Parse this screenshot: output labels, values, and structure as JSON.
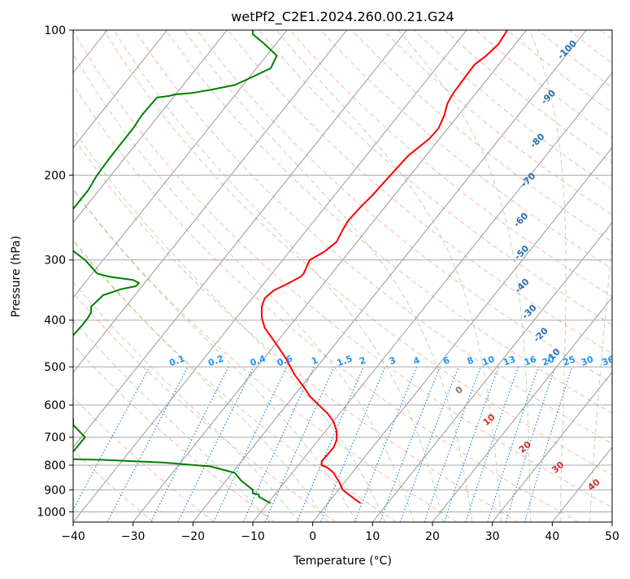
{
  "chart_data": {
    "type": "line",
    "title": "wetPf2_C2E1.2024.260.00.21.G24",
    "xlabel": "Temperature (°C)",
    "ylabel": "Pressure (hPa)",
    "xlim": [
      -40,
      50
    ],
    "ylim": [
      1050,
      100
    ],
    "y_scale": "log",
    "grid": true,
    "x_ticks": [
      -40,
      -30,
      -20,
      -10,
      0,
      10,
      20,
      30,
      40,
      50
    ],
    "y_ticks": [
      100,
      200,
      300,
      400,
      500,
      600,
      700,
      800,
      900,
      1000
    ],
    "isotherm_labels": [
      {
        "text": "-100",
        "x": -20.5,
        "p": 110
      },
      {
        "text": "-90",
        "x": -17.3,
        "p": 138
      },
      {
        "text": "-80",
        "x": -13.3,
        "p": 170
      },
      {
        "text": "-70",
        "x": -9.6,
        "p": 205
      },
      {
        "text": "-60",
        "x": -5.5,
        "p": 248
      },
      {
        "text": "-50",
        "x": -1.0,
        "p": 290
      },
      {
        "text": "-40",
        "x": 3.5,
        "p": 340
      },
      {
        "text": "-30",
        "x": 8.2,
        "p": 385
      },
      {
        "text": "-20",
        "x": 13.2,
        "p": 430
      },
      {
        "text": "-10",
        "x": 18.0,
        "p": 475
      }
    ],
    "mixing_ratio_labels": [
      "0.1",
      "0.2",
      "0.4",
      "0.6",
      "1",
      "1.5",
      "2",
      "3",
      "4",
      "6",
      "8",
      "10",
      "13",
      "16",
      "20",
      "25",
      "30",
      "36"
    ],
    "mixing_ratio_positions": [
      -22.5,
      -16,
      -9,
      -4.5,
      0.5,
      5.5,
      8.5,
      13.5,
      17.5,
      22.5,
      26.5,
      29.5,
      33,
      36.5,
      39.5,
      43,
      46,
      49.5
    ],
    "theta_e_labels": [
      {
        "text": "0",
        "x": 24.5,
        "p": 560
      },
      {
        "text": "10",
        "x": 29.5,
        "p": 645
      },
      {
        "text": "20",
        "x": 35.5,
        "p": 735
      },
      {
        "text": "30",
        "x": 41.0,
        "p": 810
      },
      {
        "text": "40",
        "x": 47.0,
        "p": 880
      }
    ],
    "series": [
      {
        "color": "#ff0000",
        "x": [
          32.5,
          31,
          29,
          27,
          25.5,
          24.5,
          23.5,
          22.5,
          22,
          21.5,
          21,
          19.5,
          16,
          13,
          10,
          8,
          6,
          5,
          4,
          2,
          -0.5,
          -1.5,
          -2,
          -4,
          -6.5,
          -8,
          -8.5,
          -8.5,
          -8,
          -6,
          -4.5,
          -3,
          -1.5,
          -0.5,
          1,
          2.5,
          3.5,
          4,
          4,
          3.5,
          2.5,
          1.5,
          1.5,
          2.5,
          3.5,
          4,
          4.5,
          5,
          6.5,
          8
        ],
        "p": [
          100,
          107,
          113,
          118,
          125,
          130,
          135,
          142,
          150,
          155,
          160,
          168,
          182,
          200,
          220,
          233,
          248,
          260,
          275,
          288,
          300,
          320,
          325,
          335,
          347,
          360,
          375,
          395,
          415,
          450,
          480,
          520,
          550,
          575,
          600,
          625,
          650,
          680,
          710,
          735,
          760,
          785,
          800,
          810,
          830,
          850,
          870,
          900,
          930,
          960
        ]
      },
      {
        "color": "#008000",
        "x": [
          -10,
          -10,
          -8,
          -6,
          -7,
          -10,
          -13,
          -17,
          -20,
          -23,
          -24,
          -26,
          -28.5,
          -30,
          -32,
          -34,
          -36,
          -37.5,
          -40,
          -42,
          -38,
          -36,
          -34,
          -30,
          -29,
          -29.5,
          -32,
          -35,
          -36,
          -37,
          -37,
          -37.5,
          -38.5,
          -40,
          -45,
          -42,
          -40,
          -40,
          -38,
          -40,
          -44,
          -35,
          -25,
          -17,
          -13,
          -12,
          -11,
          -10,
          -10,
          -9,
          -9,
          -8,
          -7
        ],
        "p": [
          100,
          102,
          107,
          113,
          120,
          125,
          130,
          133,
          135,
          136,
          137,
          138,
          150,
          160,
          172,
          185,
          200,
          215,
          235,
          275,
          300,
          320,
          325,
          330,
          335,
          340,
          345,
          355,
          365,
          375,
          385,
          395,
          410,
          430,
          460,
          600,
          640,
          660,
          700,
          750,
          775,
          780,
          790,
          805,
          830,
          860,
          880,
          900,
          915,
          920,
          930,
          945,
          960
        ]
      }
    ]
  }
}
